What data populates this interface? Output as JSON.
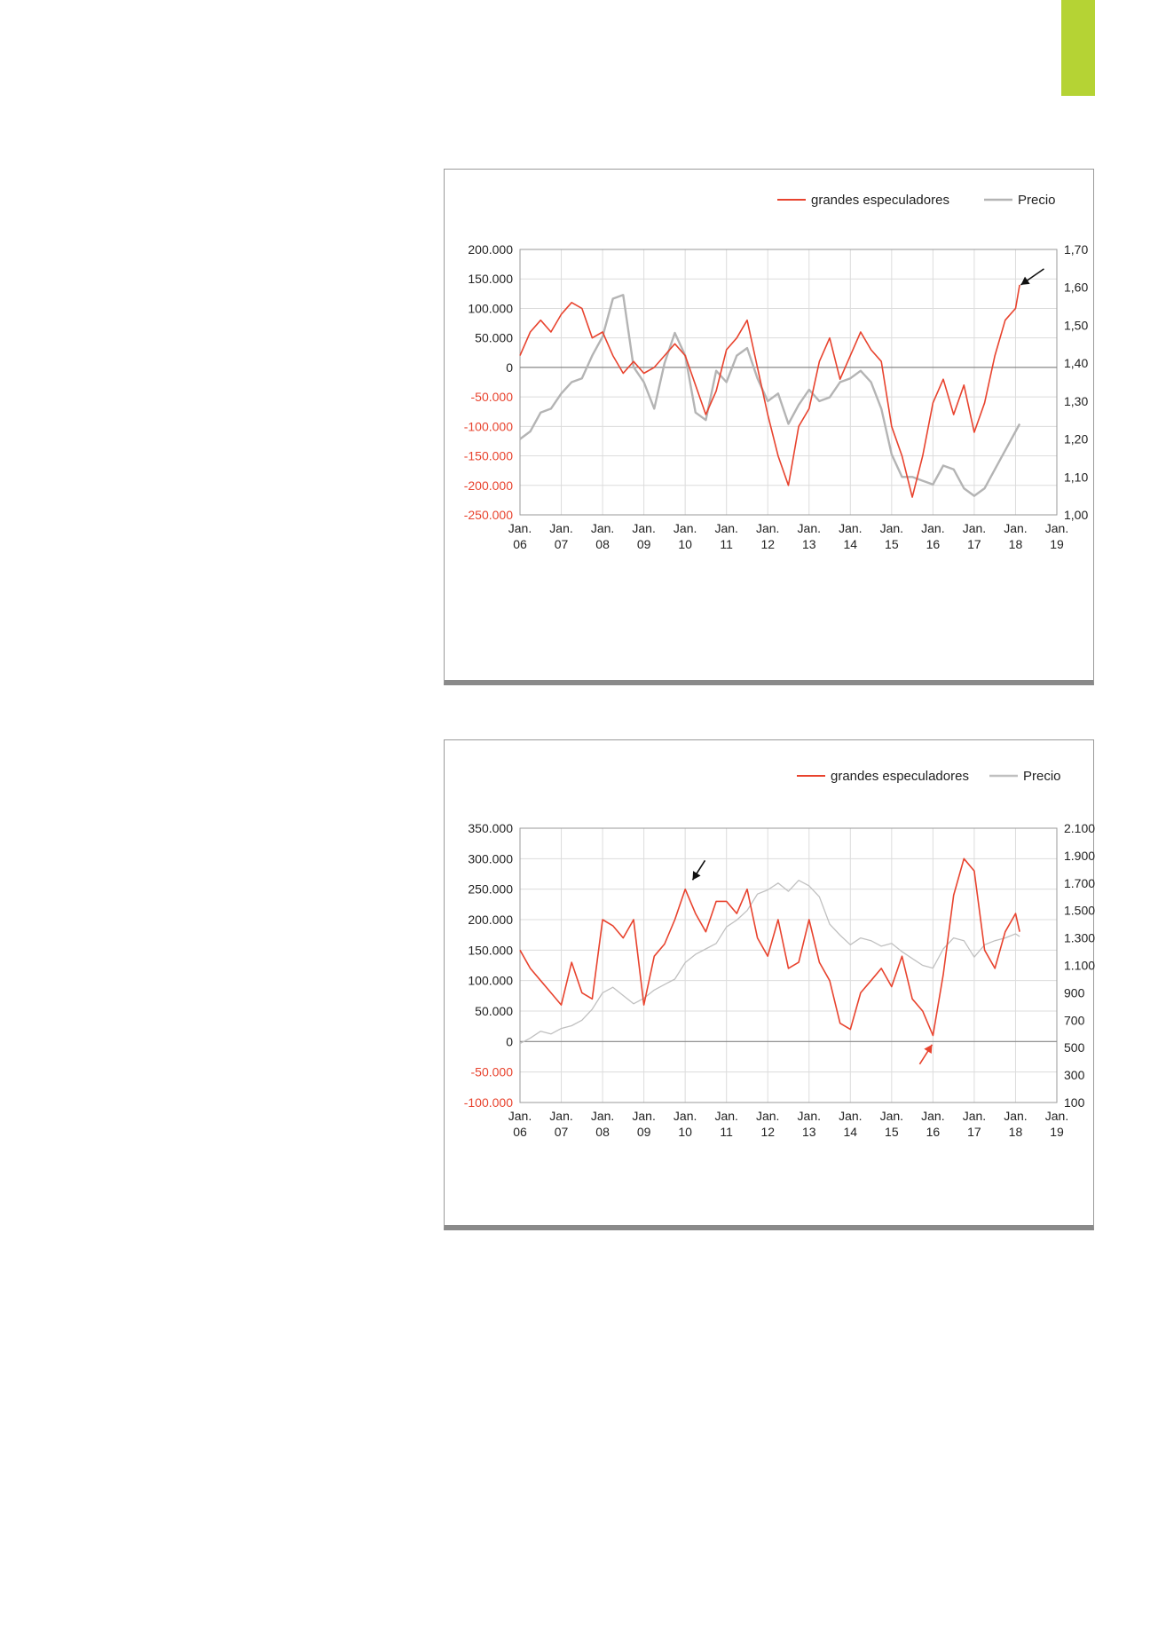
{
  "page": {
    "accent_color": "#b5d334"
  },
  "chart_data": [
    {
      "type": "line",
      "title": "",
      "xlabel": "",
      "ylabel": "",
      "x_ticks": [
        [
          "Jan.",
          "06"
        ],
        [
          "Jan.",
          "07"
        ],
        [
          "Jan.",
          "08"
        ],
        [
          "Jan.",
          "09"
        ],
        [
          "Jan.",
          "10"
        ],
        [
          "Jan.",
          "11"
        ],
        [
          "Jan.",
          "12"
        ],
        [
          "Jan.",
          "13"
        ],
        [
          "Jan.",
          "14"
        ],
        [
          "Jan.",
          "15"
        ],
        [
          "Jan.",
          "16"
        ],
        [
          "Jan.",
          "17"
        ],
        [
          "Jan.",
          "18"
        ],
        [
          "Jan.",
          "19"
        ]
      ],
      "xlim": [
        2006,
        2019
      ],
      "y_left": {
        "lim": [
          -250000,
          200000
        ],
        "ticks": [
          "200.000",
          "150.000",
          "100.000",
          "50.000",
          "0",
          "-50.000",
          "-100.000",
          "-150.000",
          "-200.000",
          "-250.000"
        ],
        "negative_color": "#e8432e"
      },
      "y_right": {
        "lim": [
          1.0,
          1.7
        ],
        "ticks": [
          "1,70",
          "1,60",
          "1,50",
          "1,40",
          "1,30",
          "1,20",
          "1,10",
          "1,00"
        ]
      },
      "grid": true,
      "legend": {
        "placement": "top-right",
        "entries": [
          "grandes especuladores",
          "Precio"
        ]
      },
      "annotation": {
        "type": "arrow",
        "color": "#111111",
        "x": 2018.0,
        "y_axis": "left",
        "y": 140000
      },
      "series": [
        {
          "name": "grandes especuladores",
          "axis": "left",
          "color": "#e8432e",
          "width": 1.6,
          "x": [
            2006.0,
            2006.25,
            2006.5,
            2006.75,
            2007.0,
            2007.25,
            2007.5,
            2007.75,
            2008.0,
            2008.25,
            2008.5,
            2008.75,
            2009.0,
            2009.25,
            2009.5,
            2009.75,
            2010.0,
            2010.25,
            2010.5,
            2010.75,
            2011.0,
            2011.25,
            2011.5,
            2011.75,
            2012.0,
            2012.25,
            2012.5,
            2012.75,
            2013.0,
            2013.25,
            2013.5,
            2013.75,
            2014.0,
            2014.25,
            2014.5,
            2014.75,
            2015.0,
            2015.25,
            2015.5,
            2015.75,
            2016.0,
            2016.25,
            2016.5,
            2016.75,
            2017.0,
            2017.25,
            2017.5,
            2017.75,
            2018.0,
            2018.1
          ],
          "y": [
            20000,
            60000,
            80000,
            60000,
            90000,
            110000,
            100000,
            50000,
            60000,
            20000,
            -10000,
            10000,
            -10000,
            0,
            20000,
            40000,
            20000,
            -30000,
            -80000,
            -40000,
            30000,
            50000,
            80000,
            0,
            -80000,
            -150000,
            -200000,
            -100000,
            -70000,
            10000,
            50000,
            -20000,
            20000,
            60000,
            30000,
            10000,
            -100000,
            -150000,
            -220000,
            -150000,
            -60000,
            -20000,
            -80000,
            -30000,
            -110000,
            -60000,
            20000,
            80000,
            100000,
            140000
          ]
        },
        {
          "name": "Precio",
          "axis": "right",
          "color": "#b4b4b4",
          "width": 2.4,
          "x": [
            2006.0,
            2006.25,
            2006.5,
            2006.75,
            2007.0,
            2007.25,
            2007.5,
            2007.75,
            2008.0,
            2008.25,
            2008.5,
            2008.75,
            2009.0,
            2009.25,
            2009.5,
            2009.75,
            2010.0,
            2010.25,
            2010.5,
            2010.75,
            2011.0,
            2011.25,
            2011.5,
            2011.75,
            2012.0,
            2012.25,
            2012.5,
            2012.75,
            2013.0,
            2013.25,
            2013.5,
            2013.75,
            2014.0,
            2014.25,
            2014.5,
            2014.75,
            2015.0,
            2015.25,
            2015.5,
            2015.75,
            2016.0,
            2016.25,
            2016.5,
            2016.75,
            2017.0,
            2017.25,
            2017.5,
            2017.75,
            2018.0,
            2018.1
          ],
          "y": [
            1.2,
            1.22,
            1.27,
            1.28,
            1.32,
            1.35,
            1.36,
            1.42,
            1.47,
            1.57,
            1.58,
            1.39,
            1.35,
            1.28,
            1.4,
            1.48,
            1.42,
            1.27,
            1.25,
            1.38,
            1.35,
            1.42,
            1.44,
            1.36,
            1.3,
            1.32,
            1.24,
            1.29,
            1.33,
            1.3,
            1.31,
            1.35,
            1.36,
            1.38,
            1.35,
            1.28,
            1.16,
            1.1,
            1.1,
            1.09,
            1.08,
            1.13,
            1.12,
            1.07,
            1.05,
            1.07,
            1.12,
            1.17,
            1.22,
            1.24
          ]
        }
      ]
    },
    {
      "type": "line",
      "title": "",
      "xlabel": "",
      "ylabel": "",
      "x_ticks": [
        [
          "Jan.",
          "06"
        ],
        [
          "Jan.",
          "07"
        ],
        [
          "Jan.",
          "08"
        ],
        [
          "Jan.",
          "09"
        ],
        [
          "Jan.",
          "10"
        ],
        [
          "Jan.",
          "11"
        ],
        [
          "Jan.",
          "12"
        ],
        [
          "Jan.",
          "13"
        ],
        [
          "Jan.",
          "14"
        ],
        [
          "Jan.",
          "15"
        ],
        [
          "Jan.",
          "16"
        ],
        [
          "Jan.",
          "17"
        ],
        [
          "Jan.",
          "18"
        ],
        [
          "Jan.",
          "19"
        ]
      ],
      "xlim": [
        2006,
        2019
      ],
      "y_left": {
        "lim": [
          -100000,
          350000
        ],
        "ticks": [
          "350.000",
          "300.000",
          "250.000",
          "200.000",
          "150.000",
          "100.000",
          "50.000",
          "0",
          "-50.000",
          "-100.000"
        ],
        "negative_color": "#e8432e"
      },
      "y_right": {
        "lim": [
          100,
          2100
        ],
        "ticks": [
          "2.100",
          "1.900",
          "1.700",
          "1.500",
          "1.300",
          "1.100",
          "900",
          "700",
          "500",
          "300",
          "100"
        ]
      },
      "grid": true,
      "legend": {
        "placement": "top-right",
        "entries": [
          "grandes especuladores",
          "Precio"
        ]
      },
      "annotations": [
        {
          "type": "arrow",
          "color": "#111111",
          "x": 2010.05,
          "y_axis": "left",
          "y": 265000,
          "direction": "down-left"
        },
        {
          "type": "arrow",
          "color": "#e8432e",
          "x": 2015.85,
          "y_axis": "left",
          "y": -5000,
          "direction": "up-right"
        }
      ],
      "series": [
        {
          "name": "grandes especuladores",
          "axis": "left",
          "color": "#e8432e",
          "width": 1.6,
          "x": [
            2006.0,
            2006.25,
            2006.5,
            2006.75,
            2007.0,
            2007.25,
            2007.5,
            2007.75,
            2008.0,
            2008.25,
            2008.5,
            2008.75,
            2009.0,
            2009.25,
            2009.5,
            2009.75,
            2010.0,
            2010.25,
            2010.5,
            2010.75,
            2011.0,
            2011.25,
            2011.5,
            2011.75,
            2012.0,
            2012.25,
            2012.5,
            2012.75,
            2013.0,
            2013.25,
            2013.5,
            2013.75,
            2014.0,
            2014.25,
            2014.5,
            2014.75,
            2015.0,
            2015.25,
            2015.5,
            2015.75,
            2016.0,
            2016.25,
            2016.5,
            2016.75,
            2017.0,
            2017.25,
            2017.5,
            2017.75,
            2018.0,
            2018.1
          ],
          "y": [
            150000,
            120000,
            100000,
            80000,
            60000,
            130000,
            80000,
            70000,
            200000,
            190000,
            170000,
            200000,
            60000,
            140000,
            160000,
            200000,
            250000,
            210000,
            180000,
            230000,
            230000,
            210000,
            250000,
            170000,
            140000,
            200000,
            120000,
            130000,
            200000,
            130000,
            100000,
            30000,
            20000,
            80000,
            100000,
            120000,
            90000,
            140000,
            70000,
            50000,
            10000,
            110000,
            240000,
            300000,
            280000,
            150000,
            120000,
            180000,
            210000,
            180000
          ]
        },
        {
          "name": "Precio",
          "axis": "right",
          "color": "#c0c0c0",
          "width": 1.3,
          "x": [
            2006.0,
            2006.25,
            2006.5,
            2006.75,
            2007.0,
            2007.25,
            2007.5,
            2007.75,
            2008.0,
            2008.25,
            2008.5,
            2008.75,
            2009.0,
            2009.25,
            2009.5,
            2009.75,
            2010.0,
            2010.25,
            2010.5,
            2010.75,
            2011.0,
            2011.25,
            2011.5,
            2011.75,
            2012.0,
            2012.25,
            2012.5,
            2012.75,
            2013.0,
            2013.25,
            2013.5,
            2013.75,
            2014.0,
            2014.25,
            2014.5,
            2014.75,
            2015.0,
            2015.25,
            2015.5,
            2015.75,
            2016.0,
            2016.25,
            2016.5,
            2016.75,
            2017.0,
            2017.25,
            2017.5,
            2017.75,
            2018.0,
            2018.1
          ],
          "y": [
            530,
            570,
            620,
            600,
            640,
            660,
            700,
            780,
            900,
            940,
            880,
            820,
            860,
            920,
            960,
            1000,
            1120,
            1180,
            1220,
            1260,
            1380,
            1430,
            1500,
            1620,
            1650,
            1700,
            1640,
            1720,
            1680,
            1600,
            1400,
            1320,
            1250,
            1300,
            1280,
            1240,
            1260,
            1200,
            1150,
            1100,
            1080,
            1220,
            1300,
            1280,
            1160,
            1250,
            1280,
            1300,
            1330,
            1310
          ]
        }
      ]
    }
  ]
}
